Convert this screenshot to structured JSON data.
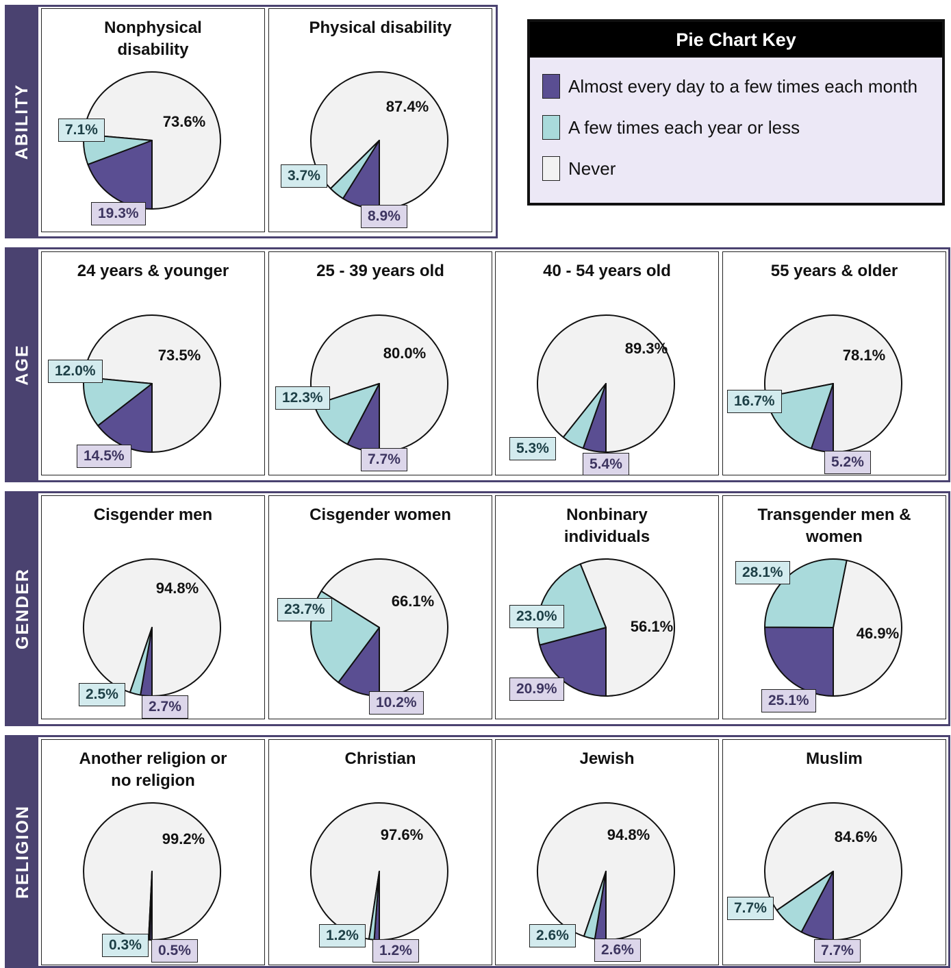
{
  "colors": {
    "daily": "#5a4e92",
    "few": "#a9dadb",
    "never": "#f2f2f2"
  },
  "key": {
    "title": "Pie Chart Key",
    "items": [
      {
        "label": "Almost every day to a few times each month",
        "series": "daily"
      },
      {
        "label": "A few times each year or less",
        "series": "few"
      },
      {
        "label": "Never",
        "series": "never"
      }
    ]
  },
  "chart_data": [
    {
      "type": "pie",
      "group": "ABILITY",
      "title": "Nonphysical disability",
      "daily": 19.3,
      "few": 7.1,
      "never": 73.6,
      "labels": {
        "daily": "19.3%",
        "few": "7.1%",
        "never": "73.6%"
      }
    },
    {
      "type": "pie",
      "group": "ABILITY",
      "title": "Physical disability",
      "daily": 8.9,
      "few": 3.7,
      "never": 87.4,
      "labels": {
        "daily": "8.9%",
        "few": "3.7%",
        "never": "87.4%"
      }
    },
    {
      "type": "pie",
      "group": "AGE",
      "title": "24 years & younger",
      "daily": 14.5,
      "few": 12.0,
      "never": 73.5,
      "labels": {
        "daily": "14.5%",
        "few": "12.0%",
        "never": "73.5%"
      }
    },
    {
      "type": "pie",
      "group": "AGE",
      "title": "25 - 39 years old",
      "daily": 7.7,
      "few": 12.3,
      "never": 80.0,
      "labels": {
        "daily": "7.7%",
        "few": "12.3%",
        "never": "80.0%"
      }
    },
    {
      "type": "pie",
      "group": "AGE",
      "title": "40 - 54 years old",
      "daily": 5.4,
      "few": 5.3,
      "never": 89.3,
      "labels": {
        "daily": "5.4%",
        "few": "5.3%",
        "never": "89.3%"
      }
    },
    {
      "type": "pie",
      "group": "AGE",
      "title": "55 years & older",
      "daily": 5.2,
      "few": 16.7,
      "never": 78.1,
      "labels": {
        "daily": "5.2%",
        "few": "16.7%",
        "never": "78.1%"
      }
    },
    {
      "type": "pie",
      "group": "GENDER",
      "title": "Cisgender men",
      "daily": 2.7,
      "few": 2.5,
      "never": 94.8,
      "labels": {
        "daily": "2.7%",
        "few": "2.5%",
        "never": "94.8%"
      }
    },
    {
      "type": "pie",
      "group": "GENDER",
      "title": "Cisgender women",
      "daily": 10.2,
      "few": 23.7,
      "never": 66.1,
      "labels": {
        "daily": "10.2%",
        "few": "23.7%",
        "never": "66.1%"
      }
    },
    {
      "type": "pie",
      "group": "GENDER",
      "title": "Nonbinary individuals",
      "daily": 20.9,
      "few": 23.0,
      "never": 56.1,
      "labels": {
        "daily": "20.9%",
        "few": "23.0%",
        "never": "56.1%"
      }
    },
    {
      "type": "pie",
      "group": "GENDER",
      "title": "Transgender men & women",
      "daily": 25.1,
      "few": 28.1,
      "never": 46.9,
      "labels": {
        "daily": "25.1%",
        "few": "28.1%",
        "never": "46.9%"
      }
    },
    {
      "type": "pie",
      "group": "RELIGION",
      "title": "Another religion or no religion",
      "daily": 0.5,
      "few": 0.3,
      "never": 99.2,
      "labels": {
        "daily": "0.5%",
        "few": "0.3%",
        "never": "99.2%"
      }
    },
    {
      "type": "pie",
      "group": "RELIGION",
      "title": "Christian",
      "daily": 1.2,
      "few": 1.2,
      "never": 97.6,
      "labels": {
        "daily": "1.2%",
        "few": "1.2%",
        "never": "97.6%"
      }
    },
    {
      "type": "pie",
      "group": "RELIGION",
      "title": "Jewish",
      "daily": 2.6,
      "few": 2.6,
      "never": 94.8,
      "labels": {
        "daily": "2.6%",
        "few": "2.6%",
        "never": "94.8%"
      }
    },
    {
      "type": "pie",
      "group": "RELIGION",
      "title": "Muslim",
      "daily": 7.7,
      "few": 7.7,
      "never": 84.6,
      "labels": {
        "daily": "7.7%",
        "few": "7.7%",
        "never": "84.6%"
      }
    }
  ]
}
